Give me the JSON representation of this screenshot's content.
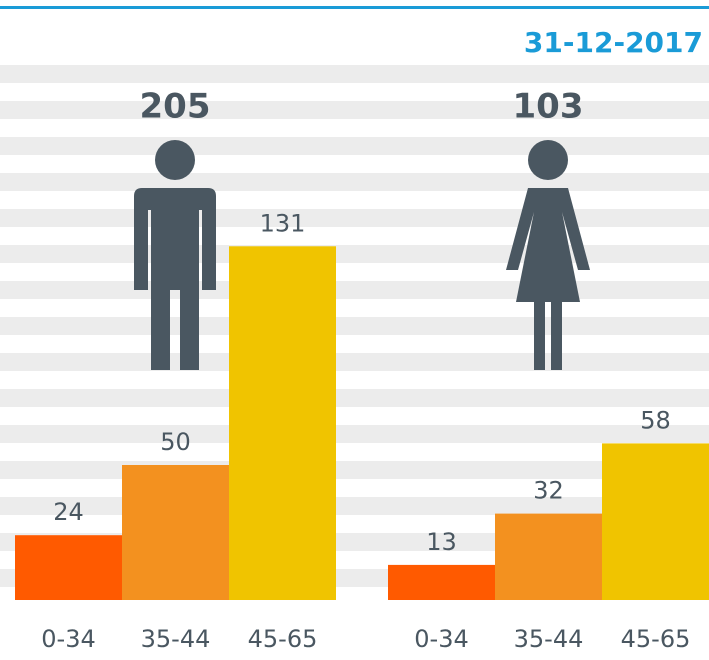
{
  "chart_data": {
    "type": "bar",
    "title": "31-12-2017",
    "categories": [
      "0-34",
      "35-44",
      "45-65"
    ],
    "colors": [
      "#ff5a00",
      "#f3911f",
      "#f0c400"
    ],
    "groups": [
      {
        "total": 205,
        "values": [
          24,
          50,
          131
        ]
      },
      {
        "total": 103,
        "values": [
          13,
          32,
          58
        ]
      }
    ]
  }
}
